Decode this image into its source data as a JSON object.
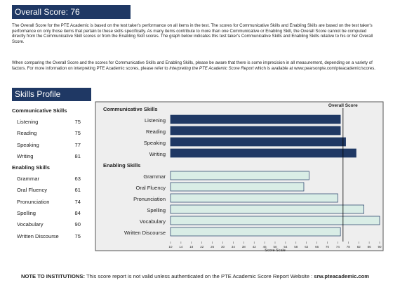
{
  "overall": {
    "label": "Overall Score:",
    "score": "76"
  },
  "intro": {
    "para1": "The Overall Score for the PTE Academic is based on the test taker's performance on all items in the test.  The scores for Communicative Skills and Enabling Skills are based on the test taker's performance on only those items that pertain to these skills specifically.  As many items contribute to more than one Communicative or Enabling Skill, the Overall Score cannot be computed directly from the Communicative Skill scores or from the Enabling Skill scores.  The graph below indicates this test taker's Communicative Skills and Enabling Skills relative to his or her Overall Score.",
    "para2_main": "When comparing the Overall Score and the scores for Communicative Skills and Enabling Skills, please be aware that there is some imprecision in all measurement, depending on a variety of factors.  For more information on interpreting PTE Academic scores, please refer to ",
    "para2_italic": "Interpreting the PTE Academic Score Report",
    "para2_end": " which is available at www.pearsonpte.com/pteacademic/scores."
  },
  "skills_profile_title": "Skills Profile",
  "communicative": {
    "title": "Communicative Skills",
    "items": [
      {
        "label": "Listening",
        "score": "75"
      },
      {
        "label": "Reading",
        "score": "75"
      },
      {
        "label": "Speaking",
        "score": "77"
      },
      {
        "label": "Writing",
        "score": "81"
      }
    ]
  },
  "enabling": {
    "title": "Enabling Skills",
    "items": [
      {
        "label": "Grammar",
        "score": "63"
      },
      {
        "label": "Oral Fluency",
        "score": "61"
      },
      {
        "label": "Pronunciation",
        "score": "74"
      },
      {
        "label": "Spelling",
        "score": "84"
      },
      {
        "label": "Vocabulary",
        "score": "90"
      },
      {
        "label": "Written Discourse",
        "score": "75"
      }
    ]
  },
  "note": {
    "bold": "NOTE TO INSTITUTIONS:",
    "text": " This score report is not valid unless authenticated on the PTE Academic Score Report Website : ",
    "site": "srw.pteacademic.com"
  },
  "chart_data": {
    "type": "bar",
    "orientation": "horizontal",
    "overall_label": "Overall Score",
    "overall_value": 76,
    "xlabel": "Score Scale",
    "xlim": [
      10,
      90
    ],
    "xticks": [
      10,
      14,
      18,
      22,
      26,
      30,
      34,
      38,
      42,
      46,
      50,
      54,
      58,
      62,
      66,
      70,
      74,
      78,
      82,
      86,
      90
    ],
    "groups": [
      {
        "name": "Communicative Skills",
        "color": "#1f3864",
        "categories": [
          "Listening",
          "Reading",
          "Speaking",
          "Writing"
        ],
        "values": [
          75,
          75,
          77,
          81
        ]
      },
      {
        "name": "Enabling Skills",
        "color": "#d9ede6",
        "categories": [
          "Grammar",
          "Oral Fluency",
          "Pronunciation",
          "Spelling",
          "Vocabulary",
          "Written Discourse"
        ],
        "values": [
          63,
          61,
          74,
          84,
          90,
          75
        ]
      }
    ]
  }
}
